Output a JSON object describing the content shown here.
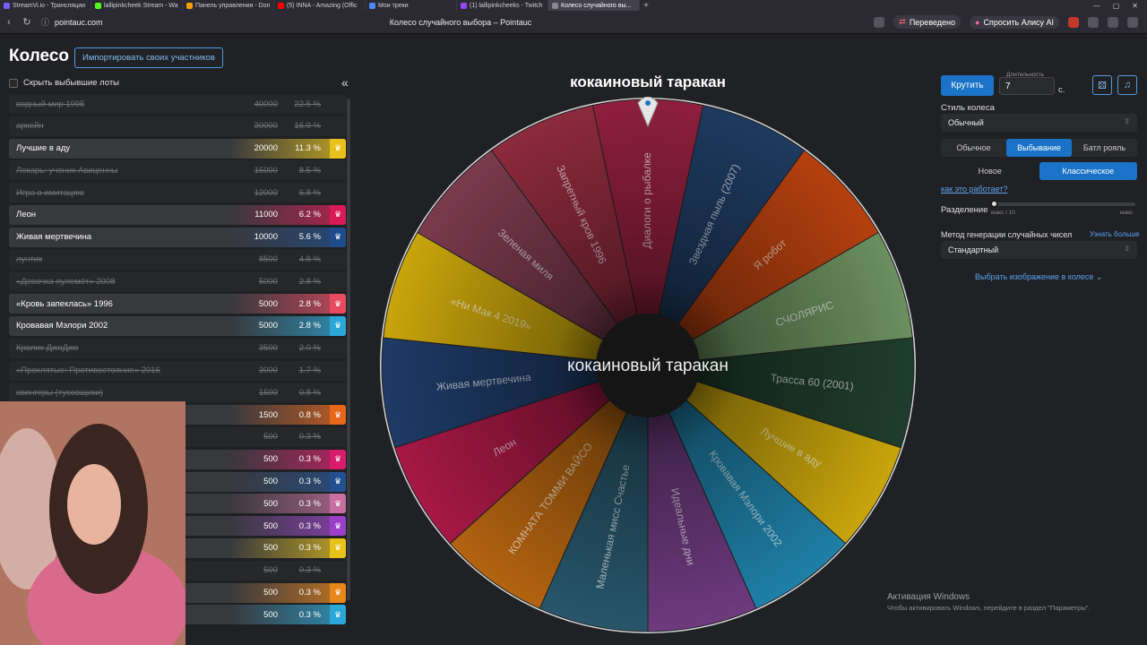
{
  "browser": {
    "tabs": [
      {
        "label": "StreamVi.io - Трансляции",
        "color": "#7b5cff"
      },
      {
        "label": "lallipinkcheek Stream - Wa",
        "color": "#53fc18"
      },
      {
        "label": "Панель управления - Don",
        "color": "#f59e0b"
      },
      {
        "label": "(5) INNA - Amazing (Offic",
        "color": "#ff0000"
      },
      {
        "label": "Мои треки",
        "color": "#4a8cff"
      },
      {
        "label": "(1) lallipinkcheeks - Twitch",
        "color": "#9146ff"
      },
      {
        "label": "Колесо случайного вы...",
        "color": "#888888",
        "active": true
      }
    ],
    "url": "pointauc.com",
    "page_title": "Колесо случайного выбора – Pointauc",
    "translated_label": "Переведено",
    "alice_label": "Спросить Алису AI"
  },
  "header": {
    "title": "Колесо",
    "import_label": "Импортировать своих участников",
    "hide_label": "Скрыть выбывшие лоты"
  },
  "lots": [
    {
      "name": "водный мир 1995",
      "amount": "40000",
      "pct": "22.5 %",
      "active": false,
      "color": ""
    },
    {
      "name": "аркейн",
      "amount": "30000",
      "pct": "16.9 %",
      "active": false,
      "color": ""
    },
    {
      "name": "Лучшие в аду",
      "amount": "20000",
      "pct": "11.3 %",
      "active": true,
      "color": "#e8c21a"
    },
    {
      "name": "Лекарь: ученик Авиценны",
      "amount": "15000",
      "pct": "8.5 %",
      "active": false,
      "color": ""
    },
    {
      "name": "Игра в имитацию",
      "amount": "12000",
      "pct": "6.8 %",
      "active": false,
      "color": ""
    },
    {
      "name": "Леон",
      "amount": "11000",
      "pct": "6.2 %",
      "active": true,
      "color": "#d81b55"
    },
    {
      "name": "Живая мертвечина",
      "amount": "10000",
      "pct": "5.6 %",
      "active": true,
      "color": "#1e4b8c"
    },
    {
      "name": "лунтик",
      "amount": "8500",
      "pct": "4.8 %",
      "active": false,
      "color": ""
    },
    {
      "name": "«Девочка-пулемёт» 2008",
      "amount": "5000",
      "pct": "2.8 %",
      "active": false,
      "color": ""
    },
    {
      "name": "«Кровь запеклась» 1996",
      "amount": "5000",
      "pct": "2.8 %",
      "active": true,
      "color": "#e84a5f"
    },
    {
      "name": "Кровавая Мэлори 2002",
      "amount": "5000",
      "pct": "2.8 %",
      "active": true,
      "color": "#2aa7d6"
    },
    {
      "name": "Кролик ДжоДжо",
      "amount": "3500",
      "pct": "2.0 %",
      "active": false,
      "color": ""
    },
    {
      "name": "«Проклятые: Противостояние» 2016",
      "amount": "3000",
      "pct": "1.7 %",
      "active": false,
      "color": ""
    },
    {
      "name": "свингеры (тусовщики)",
      "amount": "1500",
      "pct": "0.8 %",
      "active": false,
      "color": ""
    },
    {
      "name": "",
      "amount": "1500",
      "pct": "0.8 %",
      "active": true,
      "color": "#e8661a"
    },
    {
      "name": "",
      "amount": "500",
      "pct": "0.3 %",
      "active": false,
      "color": ""
    },
    {
      "name": "",
      "amount": "500",
      "pct": "0.3 %",
      "active": true,
      "color": "#d81b6a"
    },
    {
      "name": "",
      "amount": "500",
      "pct": "0.3 %",
      "active": true,
      "color": "#23508f"
    },
    {
      "name": "",
      "amount": "500",
      "pct": "0.3 %",
      "active": true,
      "color": "#c86ea0"
    },
    {
      "name": "",
      "amount": "500",
      "pct": "0.3 %",
      "active": true,
      "color": "#9b3fc8"
    },
    {
      "name": "",
      "amount": "500",
      "pct": "0.3 %",
      "active": true,
      "color": "#e8c21a"
    },
    {
      "name": "",
      "amount": "500",
      "pct": "0.3 %",
      "active": false,
      "color": ""
    },
    {
      "name": "",
      "amount": "500",
      "pct": "0.3 %",
      "active": true,
      "color": "#e8861a"
    },
    {
      "name": "",
      "amount": "500",
      "pct": "0.3 %",
      "active": true,
      "color": "#2aa7d6"
    }
  ],
  "wheel": {
    "winner": "кокаиновый таракан",
    "center_label": "кокаиновый таракан",
    "segments": [
      {
        "label": "Диалоги о рыбалке",
        "color": "#8e1f3c"
      },
      {
        "label": "Звездная пыль (2007)",
        "color": "#1e3a5f"
      },
      {
        "label": "Я робот",
        "color": "#b5400f"
      },
      {
        "label": "СЧОЛЯРИС",
        "color": "#6b8f5e"
      },
      {
        "label": "Трасса 60 (2001)",
        "color": "#1f3d2c"
      },
      {
        "label": "Лучшие в аду",
        "color": "#c9a50c"
      },
      {
        "label": "Кровавая Мэлори 2002",
        "color": "#1f7fa6"
      },
      {
        "label": "Идеальные дни",
        "color": "#6d3a7e"
      },
      {
        "label": "Маленькая мисс Счастье",
        "color": "#27566b"
      },
      {
        "label": "КОМНАТА ТОММИ ВАЙСО",
        "color": "#b36310"
      },
      {
        "label": "Леон",
        "color": "#a61846"
      },
      {
        "label": "Живая мертвечина",
        "color": "#1e3a66"
      },
      {
        "label": "«Ни Мак 4 2019»",
        "color": "#c9a50c"
      },
      {
        "label": "Зеленая миля",
        "color": "#7a3a4e"
      },
      {
        "label": "Запретный кров 1996",
        "color": "#8c2a3c"
      }
    ]
  },
  "controls": {
    "spin_label": "Крутить",
    "duration_label": "Длительность",
    "duration_value": "7",
    "duration_unit": "с.",
    "style_label": "Стиль колеса",
    "style_value": "Обычный",
    "modes": [
      "Обычное",
      "Выбывание",
      "Батл рояль"
    ],
    "mode_selected": 1,
    "variants": [
      "Новое",
      "Классическое"
    ],
    "variant_selected": 1,
    "how_link": "как это работает?",
    "split_label": "Разделение",
    "split_min": "макс / 10",
    "split_max": "макс",
    "split_level": 0,
    "rng_label": "Метод генерации случайных чисел",
    "rng_more": "Узнать больше",
    "rng_value": "Стандартный",
    "image_label": "Выбрать изображение в колесе"
  },
  "watermark": {
    "line1": "Активация Windows",
    "line2": "Чтобы активировать Windows, перейдите в раздел \"Параметры\"."
  }
}
